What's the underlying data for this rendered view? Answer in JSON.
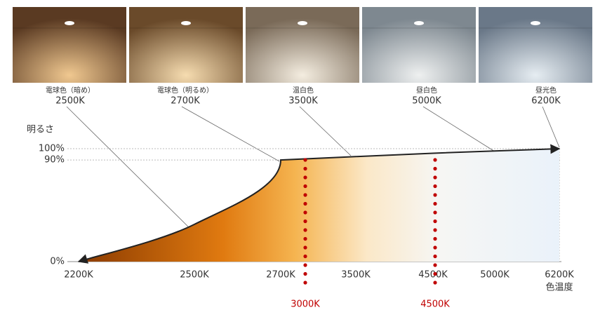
{
  "photos": [
    {
      "name": "電球色（暗め）",
      "temp": "2500K"
    },
    {
      "name": "電球色（明るめ）",
      "temp": "2700K"
    },
    {
      "name": "温白色",
      "temp": "3500K"
    },
    {
      "name": "昼白色",
      "temp": "5000K"
    },
    {
      "name": "昼光色",
      "temp": "6200K"
    }
  ],
  "chart_data": {
    "type": "line",
    "y_label": "明るさ",
    "x_label": "色温度",
    "categories": [
      "2200K",
      "2500K",
      "2700K",
      "3500K",
      "4500K",
      "5000K",
      "6200K"
    ],
    "values": [
      0,
      33,
      90,
      93,
      96,
      98,
      100
    ],
    "ylim": [
      0,
      100
    ],
    "yticks": [
      {
        "value": 100,
        "label": "100%"
      },
      {
        "value": 90,
        "label": "90%"
      },
      {
        "value": 0,
        "label": "0%"
      }
    ],
    "grid": true,
    "markers": [
      {
        "label": "3000K",
        "color": "#c00000"
      },
      {
        "label": "4500K",
        "color": "#c00000"
      }
    ]
  }
}
